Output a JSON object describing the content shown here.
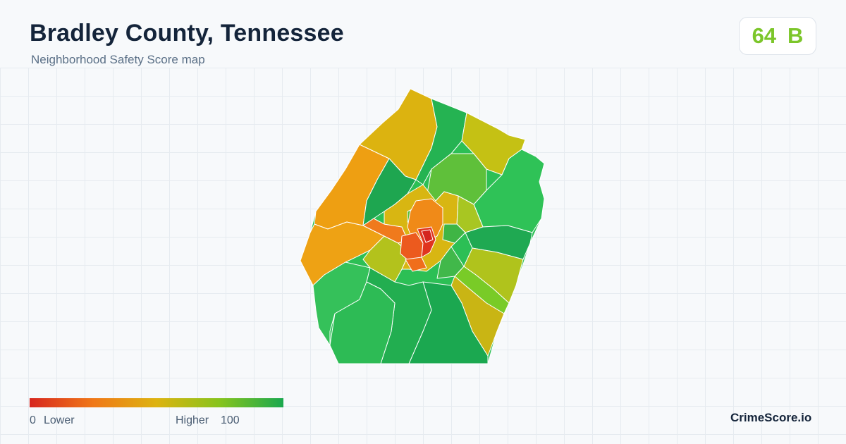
{
  "header": {
    "title": "Bradley County, Tennessee",
    "subtitle": "Neighborhood Safety Score map"
  },
  "score": {
    "value": "64",
    "grade": "B",
    "color": "#7cc62a"
  },
  "legend": {
    "min_value": "0",
    "min_label": "Lower",
    "max_label": "Higher",
    "max_value": "100",
    "colors": [
      "#d7261e",
      "#f07818",
      "#ddb310",
      "#86c41d",
      "#1aa84e"
    ]
  },
  "brand": "CrimeScore.io"
}
